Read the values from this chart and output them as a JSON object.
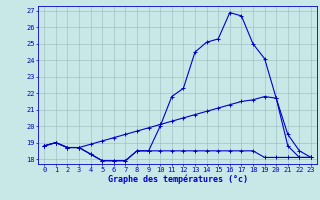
{
  "xlabel": "Graphe des températures (°c)",
  "bg_color": "#c8e8e8",
  "line_color": "#0000cc",
  "grid_color": "#99bbbb",
  "xmin": 0,
  "xmax": 23,
  "ymin": 18,
  "ymax": 27,
  "ylim_bottom": 17.7,
  "ylim_top": 27.3,
  "series1_x": [
    0,
    1,
    2,
    3,
    4,
    5,
    6,
    7,
    8,
    9,
    10,
    11,
    12,
    13,
    14,
    15,
    16,
    17,
    18,
    19,
    20,
    21,
    22,
    23
  ],
  "series1_y": [
    18.8,
    19.0,
    18.7,
    18.7,
    18.3,
    17.9,
    17.9,
    17.9,
    18.5,
    18.5,
    20.0,
    21.8,
    22.3,
    24.5,
    25.1,
    25.3,
    26.9,
    26.7,
    25.0,
    24.1,
    21.7,
    18.8,
    18.1,
    18.1
  ],
  "series2_x": [
    0,
    1,
    2,
    3,
    4,
    5,
    6,
    7,
    8,
    9,
    10,
    11,
    12,
    13,
    14,
    15,
    16,
    17,
    18,
    19,
    20,
    21,
    22,
    23
  ],
  "series2_y": [
    18.8,
    19.0,
    18.7,
    18.7,
    18.3,
    17.9,
    17.9,
    17.9,
    18.5,
    18.5,
    18.5,
    18.5,
    18.5,
    18.5,
    18.5,
    18.5,
    18.5,
    18.5,
    18.5,
    18.1,
    18.1,
    18.1,
    18.1,
    18.1
  ],
  "series3_x": [
    0,
    1,
    2,
    3,
    4,
    5,
    6,
    7,
    8,
    9,
    10,
    11,
    12,
    13,
    14,
    15,
    16,
    17,
    18,
    19,
    20,
    21,
    22,
    23
  ],
  "series3_y": [
    18.8,
    19.0,
    18.7,
    18.7,
    18.9,
    19.1,
    19.3,
    19.5,
    19.7,
    19.9,
    20.1,
    20.3,
    20.5,
    20.7,
    20.9,
    21.1,
    21.3,
    21.5,
    21.6,
    21.8,
    21.7,
    19.5,
    18.5,
    18.1
  ],
  "tick_fontsize": 5,
  "label_fontsize": 6
}
